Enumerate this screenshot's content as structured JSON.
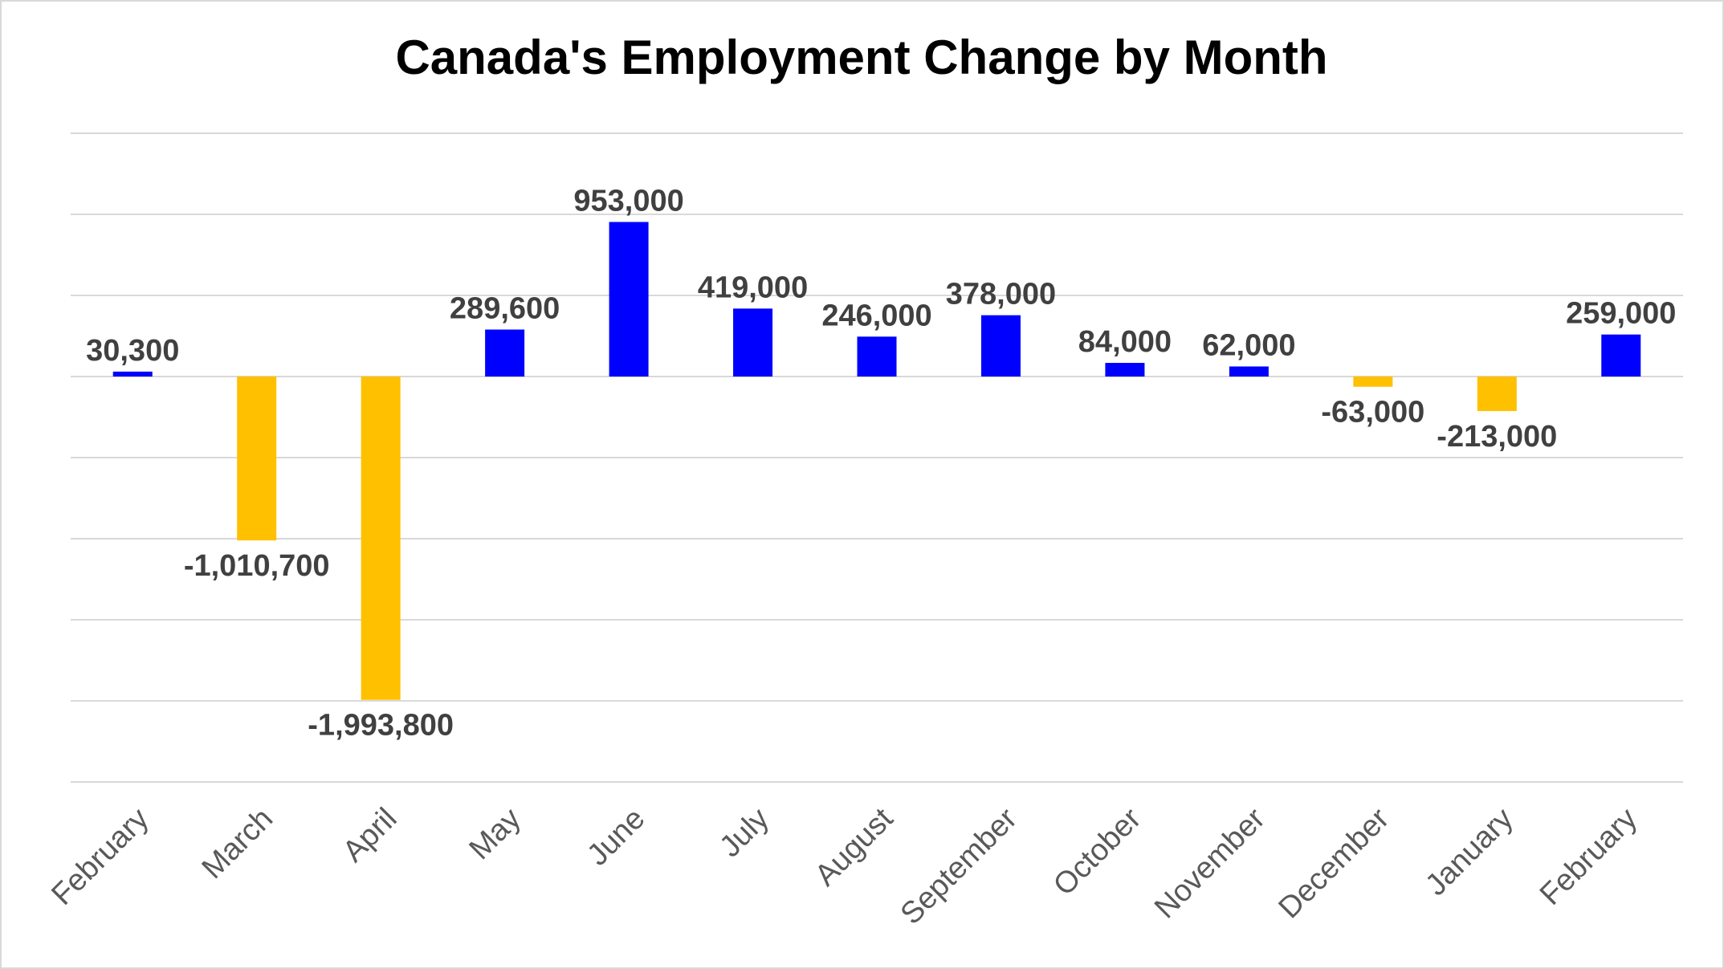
{
  "chart_data": {
    "type": "bar",
    "title": "Canada's Employment Change by Month",
    "xlabel": "",
    "ylabel": "",
    "categories": [
      "February",
      "March",
      "April",
      "May",
      "June",
      "July",
      "August",
      "September",
      "October",
      "November",
      "December",
      "January",
      "February"
    ],
    "values": [
      30300,
      -1010700,
      -1993800,
      289600,
      953000,
      419000,
      246000,
      378000,
      84000,
      62000,
      -63000,
      -213000,
      259000
    ],
    "data_labels": [
      "30,300",
      "-1,010,700",
      "-1,993,800",
      "289,600",
      "953,000",
      "419,000",
      "246,000",
      "378,000",
      "84,000",
      "62,000",
      "-63,000",
      "-213,000",
      "259,000"
    ],
    "ylim": [
      -2500000,
      1500000
    ],
    "gridlines": true,
    "gridline_step": 500000,
    "legend": "none",
    "colors": {
      "positive": "#0000FF",
      "negative": "#FFC000",
      "grid": "#D9D9D9",
      "border": "#D9D9D9",
      "data_label": "#404040",
      "axis_label": "#595959",
      "title": "#000000"
    }
  }
}
